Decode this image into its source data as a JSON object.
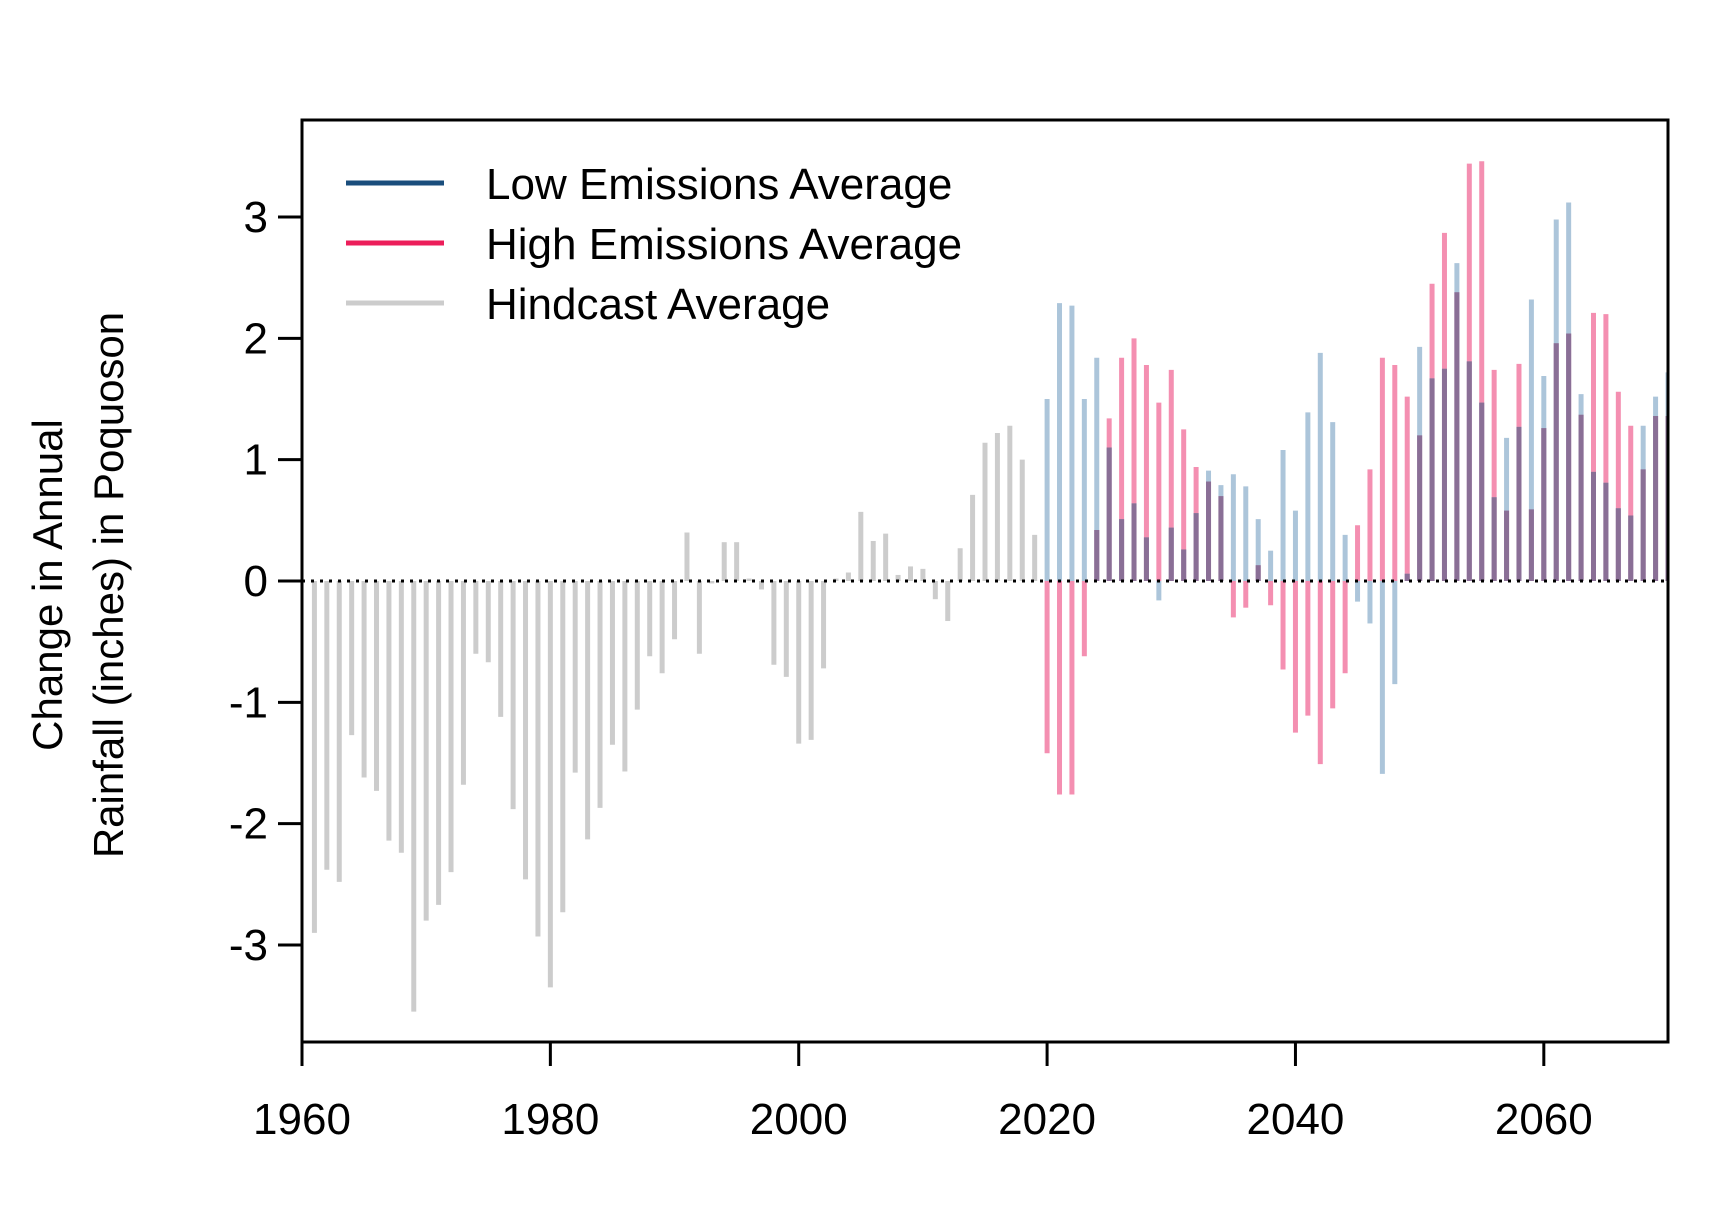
{
  "chart_data": {
    "type": "bar",
    "title": "",
    "xlabel": "",
    "ylabel_lines": [
      "Change in Annual",
      "Rainfall (inches) in Poquoson"
    ],
    "xlim": [
      1960,
      2070
    ],
    "ylim": [
      -3.8,
      3.8
    ],
    "x_ticks": [
      1960,
      1980,
      2000,
      2020,
      2040,
      2060
    ],
    "y_ticks": [
      -3,
      -2,
      -1,
      0,
      1,
      2,
      3
    ],
    "legend_position": "top-left",
    "reference_line": {
      "y": 0,
      "style": "dotted"
    },
    "series": [
      {
        "name": "Hindcast Average",
        "color": "#cccccc",
        "legend_color": "#cccccc",
        "x": [
          1961,
          1962,
          1963,
          1964,
          1965,
          1966,
          1967,
          1968,
          1969,
          1970,
          1971,
          1972,
          1973,
          1974,
          1975,
          1976,
          1977,
          1978,
          1979,
          1980,
          1981,
          1982,
          1983,
          1984,
          1985,
          1986,
          1987,
          1988,
          1989,
          1990,
          1991,
          1992,
          1993,
          1994,
          1995,
          1996,
          1997,
          1998,
          1999,
          2000,
          2001,
          2002,
          2003,
          2004,
          2005,
          2006,
          2007,
          2008,
          2009,
          2010,
          2011,
          2012,
          2013,
          2014,
          2015,
          2016,
          2017,
          2018,
          2019
        ],
        "values": [
          -2.9,
          -2.38,
          -2.48,
          -1.27,
          -1.62,
          -1.73,
          -2.14,
          -2.24,
          -3.55,
          -2.8,
          -2.67,
          -2.4,
          -1.68,
          -0.6,
          -0.67,
          -1.12,
          -1.88,
          -2.46,
          -2.93,
          -3.35,
          -2.73,
          -1.58,
          -2.13,
          -1.87,
          -1.35,
          -1.57,
          -1.06,
          -0.62,
          -0.76,
          -0.48,
          0.4,
          -0.6,
          -0.02,
          0.32,
          0.32,
          0.02,
          -0.07,
          -0.69,
          -0.79,
          -1.34,
          -1.31,
          -0.72,
          0.02,
          0.07,
          0.57,
          0.33,
          0.39,
          0.05,
          0.12,
          0.1,
          -0.15,
          -0.33,
          0.27,
          0.71,
          1.14,
          1.22,
          1.28,
          1.0,
          0.38
        ]
      },
      {
        "name": "High Emissions Average",
        "color": "#f48fb1",
        "legend_color": "#ec1e5a",
        "x": [
          2020,
          2021,
          2022,
          2023,
          2024,
          2025,
          2026,
          2027,
          2028,
          2029,
          2030,
          2031,
          2032,
          2033,
          2034,
          2035,
          2036,
          2037,
          2038,
          2039,
          2040,
          2041,
          2042,
          2043,
          2044,
          2045,
          2046,
          2047,
          2048,
          2049,
          2050,
          2051,
          2052,
          2053,
          2054,
          2055,
          2056,
          2057,
          2058,
          2059,
          2060,
          2061,
          2062,
          2063,
          2064,
          2065,
          2066,
          2067,
          2068,
          2069,
          2070
        ],
        "values": [
          -1.42,
          -1.76,
          -1.76,
          -0.62,
          0.42,
          1.34,
          1.84,
          2.0,
          1.78,
          1.47,
          1.74,
          1.25,
          0.94,
          0.82,
          0.7,
          -0.3,
          -0.22,
          0.13,
          -0.2,
          -0.73,
          -1.25,
          -1.11,
          -1.51,
          -1.05,
          -0.76,
          0.46,
          0.92,
          1.84,
          1.78,
          1.52,
          1.2,
          2.45,
          2.87,
          2.38,
          3.44,
          3.46,
          1.74,
          0.58,
          1.79,
          0.59,
          1.26,
          1.96,
          2.04,
          1.37,
          2.21,
          2.2,
          1.56,
          1.28,
          0.92,
          1.36,
          1.36
        ]
      },
      {
        "name": "Low Emissions Average",
        "color": "#8db0cc",
        "legend_color": "#1a4d7c",
        "x": [
          2020,
          2021,
          2022,
          2023,
          2024,
          2025,
          2026,
          2027,
          2028,
          2029,
          2030,
          2031,
          2032,
          2033,
          2034,
          2035,
          2036,
          2037,
          2038,
          2039,
          2040,
          2041,
          2042,
          2043,
          2044,
          2045,
          2046,
          2047,
          2048,
          2049,
          2050,
          2051,
          2052,
          2053,
          2054,
          2055,
          2056,
          2057,
          2058,
          2059,
          2060,
          2061,
          2062,
          2063,
          2064,
          2065,
          2066,
          2067,
          2068,
          2069,
          2070
        ],
        "values": [
          1.5,
          2.29,
          2.27,
          1.5,
          1.84,
          1.1,
          0.51,
          0.64,
          0.36,
          -0.16,
          0.44,
          0.26,
          0.56,
          0.91,
          0.79,
          0.88,
          0.78,
          0.51,
          0.25,
          1.08,
          0.58,
          1.39,
          1.88,
          1.31,
          0.38,
          -0.17,
          -0.35,
          -1.59,
          -0.85,
          0.06,
          1.93,
          1.67,
          1.75,
          2.62,
          1.81,
          1.47,
          0.69,
          1.18,
          1.27,
          2.32,
          1.69,
          2.98,
          3.12,
          1.54,
          0.9,
          0.81,
          0.6,
          0.54,
          1.28,
          1.52,
          1.72
        ]
      }
    ]
  }
}
